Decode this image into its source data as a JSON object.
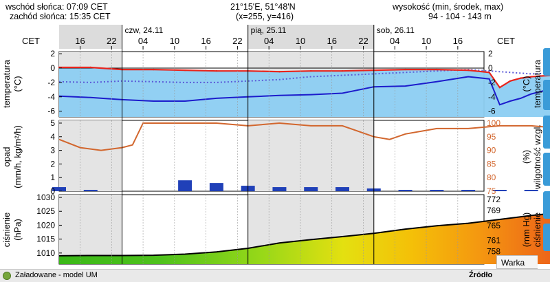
{
  "header": {
    "sunrise": "wschód słońca: 07:09 CET",
    "sunset": "zachód słońca: 15:35 CET",
    "coords": "21°15'E, 51°48'N",
    "grid_xy": "(x=255, y=416)",
    "altitude_label": "wysokość (min, środek, max)",
    "altitude_values": "94 - 104 - 143 m"
  },
  "timeline": {
    "tz_left": "CET",
    "tz_right": "CET",
    "days": [
      "czw, 24.11",
      "pią, 25.11",
      "sob, 26.11"
    ],
    "hours": [
      "16",
      "22",
      "04",
      "10",
      "16",
      "22",
      "04",
      "10",
      "16",
      "22",
      "04",
      "10",
      "16"
    ],
    "hours_start": "2022-11-23T16:00",
    "hour_step": 6,
    "day_starts": [
      "2022-11-24T00:00",
      "2022-11-25T00:00",
      "2022-11-26T00:00"
    ],
    "range_start": "2022-11-23T12:00",
    "range_end": "2022-11-26T21:00"
  },
  "colors": {
    "temp_line": "#e8241c",
    "dewpoint_line": "#1c1ccc",
    "temp_fill": "#8ccdf2",
    "precip_bar": "#2040b8",
    "humidity_line": "#d2662d",
    "pressure_line": "#000000"
  },
  "chart_data": [
    {
      "type": "line",
      "name": "temperature",
      "ylabel": "temperatura (°C)",
      "ylabel_right": "temperatura (°C)",
      "ylim": [
        -6.8,
        2.3
      ],
      "yticks": [
        2,
        0,
        -2,
        -4,
        -6
      ],
      "x_unit": "hours since 2022-11-23T12:00",
      "series": [
        {
          "values_x": [
            0,
            6,
            12,
            18,
            24,
            30,
            36,
            42,
            48,
            54,
            60,
            66,
            72,
            78,
            82,
            84,
            86,
            88,
            90,
            96,
            102,
            108,
            114,
            120,
            126,
            129
          ],
          "values": [
            0.1,
            0.1,
            -0.2,
            -0.2,
            -0.3,
            -0.4,
            -0.4,
            -0.5,
            -0.4,
            -0.4,
            -0.3,
            -0.2,
            -0.2,
            -0.3,
            -0.6,
            -2.7,
            -1.8,
            -1.4,
            -1.2,
            -0.9,
            -0.6,
            -0.3,
            -0.1,
            0.0,
            0.0,
            0.0
          ]
        },
        {
          "values_x": [
            0,
            6,
            12,
            18,
            24,
            30,
            36,
            42,
            48,
            54,
            60,
            66,
            72,
            78,
            82,
            84,
            86,
            88,
            90,
            96,
            102,
            108,
            114,
            120,
            126,
            129
          ],
          "values": [
            -3.9,
            -4.1,
            -4.4,
            -4.6,
            -4.6,
            -4.2,
            -4.0,
            -3.8,
            -3.7,
            -3.5,
            -2.6,
            -2.5,
            -1.9,
            -1.2,
            -1.5,
            -5.1,
            -4.6,
            -4.2,
            -3.6,
            -2.5,
            -2.0,
            -1.3,
            -0.9,
            -0.6,
            -0.2,
            -0.9
          ]
        },
        {
          "values_x": [
            0,
            6,
            12,
            18,
            24,
            30,
            36,
            42,
            48,
            54,
            60,
            66,
            72,
            78,
            84,
            90,
            96,
            102,
            108,
            114,
            120,
            126,
            129
          ],
          "values": [
            -1.9,
            -2.0,
            -1.8,
            -1.9,
            -2.0,
            -2.0,
            -1.8,
            -1.6,
            -1.2,
            -1.0,
            -0.8,
            -0.6,
            -0.4,
            -0.2,
            -0.5,
            -0.8,
            -0.7,
            -0.5,
            -0.4,
            -0.3,
            -0.2,
            -0.1,
            -0.1
          ]
        }
      ]
    },
    {
      "type": "bar",
      "name": "precipitation",
      "ylabel": "opad (mm/h, kg/m²/h)",
      "ylabel_right": "wilgotność wzgl. (%)",
      "ylim": [
        0,
        5.2
      ],
      "yticks": [
        5,
        4,
        3,
        2,
        1,
        0
      ],
      "y2ticks": [
        100,
        95,
        90,
        85,
        80,
        75
      ],
      "y2lim": [
        75,
        101
      ],
      "x_unit": "hours since 2022-11-23T12:00",
      "series": [
        {
          "values_x": [
            0,
            6,
            12,
            18,
            24,
            30,
            36,
            42,
            48,
            54,
            60,
            66,
            72,
            78,
            84,
            90,
            96,
            102,
            108,
            114,
            120,
            126,
            129
          ],
          "values": [
            0.3,
            0.1,
            0.0,
            0.0,
            0.8,
            0.6,
            0.4,
            0.3,
            0.3,
            0.3,
            0.2,
            0.1,
            0.1,
            0.1,
            0.1,
            0.1,
            0.1,
            0.1,
            0.1,
            0.1,
            0.0,
            0.1,
            0.0
          ]
        },
        {
          "values_x": [
            0,
            4,
            8,
            12,
            14,
            16,
            17,
            20,
            24,
            30,
            36,
            42,
            48,
            54,
            57,
            60,
            63,
            66,
            72,
            78,
            84,
            90,
            96,
            102,
            108,
            114,
            120,
            126,
            129
          ],
          "values": [
            94,
            91,
            90,
            91,
            92,
            100,
            100,
            100,
            100,
            100,
            99,
            100,
            99,
            99,
            97,
            95,
            94,
            96,
            98,
            98,
            99,
            99,
            98,
            98,
            99,
            98,
            99,
            99,
            99
          ]
        }
      ]
    },
    {
      "type": "area",
      "name": "pressure",
      "ylabel": "ciśnienie (hPa)",
      "ylabel_right": "ciśnienie (mm Hg)",
      "ylim": [
        1006,
        1031
      ],
      "yticks": [
        1030,
        1025,
        1020,
        1015,
        1010
      ],
      "y2ticks": [
        772,
        769,
        765,
        761,
        758
      ],
      "x_unit": "hours since 2022-11-23T12:00",
      "series": [
        {
          "values_x": [
            0,
            6,
            12,
            18,
            24,
            30,
            36,
            42,
            48,
            54,
            60,
            66,
            72,
            78,
            84,
            90,
            96,
            102,
            108,
            114,
            120,
            126,
            129
          ],
          "values": [
            1009.0,
            1009.1,
            1009.1,
            1009.2,
            1009.6,
            1010.4,
            1011.7,
            1013.6,
            1014.8,
            1015.9,
            1017.1,
            1018.6,
            1019.8,
            1020.7,
            1022.1,
            1023.5,
            1024.6,
            1025.8,
            1026.8,
            1028.2,
            1029.1,
            1030.3,
            1031.0
          ]
        }
      ]
    }
  ],
  "footer": {
    "status": "Załadowane - model UM",
    "source": "Źródło",
    "warka": "Warka"
  }
}
